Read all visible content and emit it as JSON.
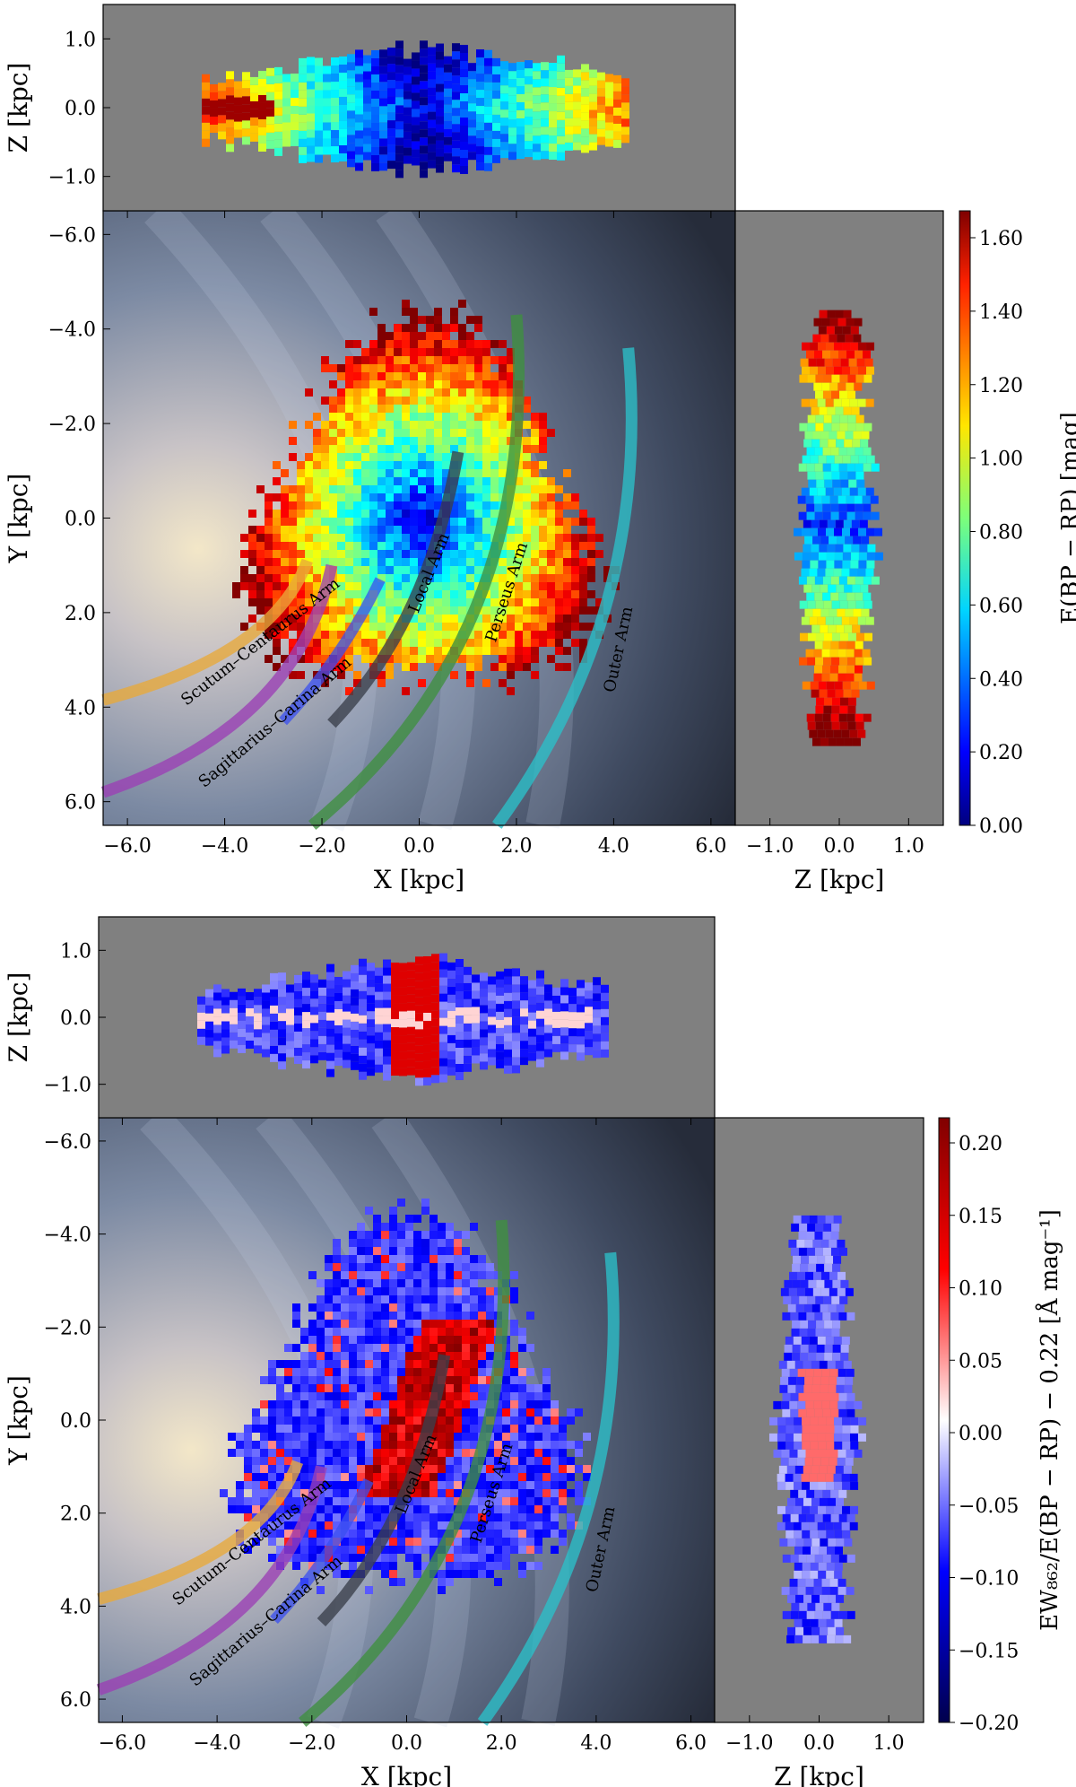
{
  "figure": {
    "panels": [
      {
        "map": {
          "y_top": -6.5,
          "y_bottom": 6.5
        },
        "xlabel": "X [kpc]",
        "ylabel": "Y [kpc]",
        "xticks": [
          "−6.0",
          "−4.0",
          "−2.0",
          "0.0",
          "2.0",
          "4.0",
          "6.0"
        ],
        "yticks": [
          "−6.0",
          "−4.0",
          "−2.0",
          "0.0",
          "2.0",
          "4.0",
          "6.0"
        ],
        "top": {
          "zlabel": "Z [kpc]",
          "zticks": [
            "1.0",
            "0.0",
            "−1.0"
          ]
        },
        "side": {
          "zlabel": "Z [kpc]",
          "zticks": [
            "−1.0",
            "0.0",
            "1.0"
          ]
        },
        "colorbar": {
          "label": "E(BP − RP) [mag]",
          "ticks": [
            "1.60",
            "1.40",
            "1.20",
            "1.00",
            "0.80",
            "0.60",
            "0.40",
            "0.20",
            "0.00"
          ],
          "colormap": "jet"
        },
        "arms": [
          {
            "name": "Scutum–Centaurus Arm",
            "color": "#e8a93a"
          },
          {
            "name": "Sagittarius–Carina Arm",
            "color": "#9b3fb5"
          },
          {
            "name": "Local Arm",
            "color": "#3a3f4a"
          },
          {
            "name": "Perseus Arm",
            "color": "#3f8f3f"
          },
          {
            "name": "Outer Arm",
            "color": "#2cc0c9"
          }
        ]
      },
      {
        "map": {
          "y_top": -6.5,
          "y_bottom": 6.5
        },
        "xlabel": "X [kpc]",
        "ylabel": "Y [kpc]",
        "xticks": [
          "−6.0",
          "−4.0",
          "−2.0",
          "0.0",
          "2.0",
          "4.0",
          "6.0"
        ],
        "yticks": [
          "−6.0",
          "−4.0",
          "−2.0",
          "0.0",
          "2.0",
          "4.0",
          "6.0"
        ],
        "top": {
          "zlabel": "Z [kpc]",
          "zticks": [
            "1.0",
            "0.0",
            "−1.0"
          ]
        },
        "side": {
          "zlabel": "Z [kpc]",
          "zticks": [
            "−1.0",
            "0.0",
            "1.0"
          ]
        },
        "colorbar": {
          "label": "EW₈₆₂/E(BP − RP) − 0.22 [Å mag⁻¹]",
          "ticks": [
            "0.20",
            "0.15",
            "0.10",
            "0.05",
            "0.00",
            "−0.05",
            "−0.10",
            "−0.15",
            "−0.20"
          ],
          "colormap": "seismic"
        },
        "arms": [
          {
            "name": "Scutum–Centaurus Arm",
            "color": "#e8a93a"
          },
          {
            "name": "Sagittarius–Carina Arm",
            "color": "#9b3fb5"
          },
          {
            "name": "Local Arm",
            "color": "#3a3f4a"
          },
          {
            "name": "Perseus Arm",
            "color": "#3f8f3f"
          },
          {
            "name": "Outer Arm",
            "color": "#2cc0c9"
          }
        ]
      }
    ]
  },
  "chart_data": [
    {
      "type": "heatmap",
      "xlabel": "X [kpc]",
      "ylabel": "Y [kpc]",
      "xlim": [
        -6.5,
        6.5
      ],
      "ylim": [
        6.5,
        -6.5
      ],
      "top_projection": {
        "xlabel": "X [kpc]",
        "ylabel": "Z [kpc]",
        "ylim": [
          -1.5,
          1.5
        ]
      },
      "side_projection": {
        "xlabel": "Z [kpc]",
        "ylabel": "Y [kpc]",
        "xlim": [
          -1.5,
          1.5
        ]
      },
      "colorbar": {
        "label": "E(BP − RP) [mag]",
        "range": [
          0.0,
          1.65
        ],
        "ticks": [
          1.6,
          1.4,
          1.2,
          1.0,
          0.8,
          0.6,
          0.4,
          0.2,
          0.0
        ]
      },
      "arm_labels": [
        "Scutum–Centaurus Arm",
        "Sagittarius–Carina Arm",
        "Local Arm",
        "Perseus Arm",
        "Outer Arm"
      ]
    },
    {
      "type": "heatmap",
      "xlabel": "X [kpc]",
      "ylabel": "Y [kpc]",
      "xlim": [
        -6.5,
        6.5
      ],
      "ylim": [
        6.5,
        -6.5
      ],
      "top_projection": {
        "xlabel": "X [kpc]",
        "ylabel": "Z [kpc]",
        "ylim": [
          -1.5,
          1.5
        ]
      },
      "side_projection": {
        "xlabel": "Z [kpc]",
        "ylabel": "Y [kpc]",
        "xlim": [
          -1.5,
          1.5
        ]
      },
      "colorbar": {
        "label": "EW₈₆₂/E(BP − RP) − 0.22 [Å mag⁻¹]",
        "range": [
          -0.2,
          0.2
        ],
        "ticks": [
          0.2,
          0.15,
          0.1,
          0.05,
          0.0,
          -0.05,
          -0.1,
          -0.15,
          -0.2
        ]
      },
      "arm_labels": [
        "Scutum–Centaurus Arm",
        "Sagittarius–Carina Arm",
        "Local Arm",
        "Perseus Arm",
        "Outer Arm"
      ]
    }
  ]
}
